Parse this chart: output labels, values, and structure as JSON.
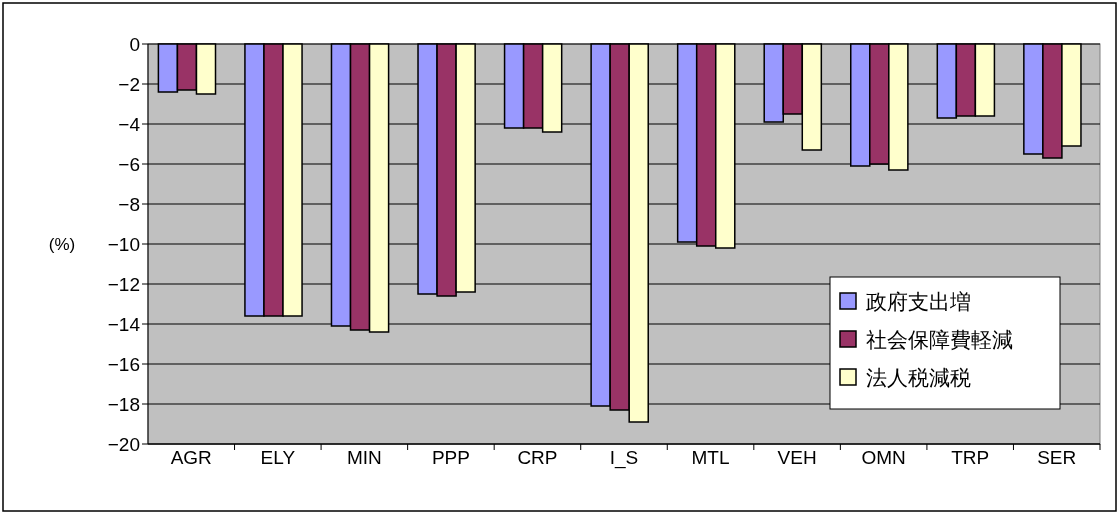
{
  "chart_data": {
    "type": "bar",
    "ylabel": "(%)",
    "categories": [
      "AGR",
      "ELY",
      "MIN",
      "PPP",
      "CRP",
      "I_S",
      "MTL",
      "VEH",
      "OMN",
      "TRP",
      "SER"
    ],
    "series": [
      {
        "name": "政府支出増",
        "color": "#9999ff",
        "values": [
          -2.4,
          -13.6,
          -14.1,
          -12.5,
          -4.2,
          -18.1,
          -9.9,
          -3.9,
          -6.1,
          -3.7,
          -5.5
        ]
      },
      {
        "name": "社会保障費軽減",
        "color": "#993366",
        "values": [
          -2.3,
          -13.6,
          -14.3,
          -12.6,
          -4.2,
          -18.3,
          -10.1,
          -3.5,
          -6.0,
          -3.6,
          -5.7
        ]
      },
      {
        "name": "法人税減税",
        "color": "#ffffcc",
        "values": [
          -2.5,
          -13.6,
          -14.4,
          -12.4,
          -4.4,
          -18.9,
          -10.2,
          -5.3,
          -6.3,
          -3.6,
          -5.1
        ]
      }
    ],
    "ylim": [
      -20,
      0
    ],
    "yticks": [
      -20,
      -18,
      -16,
      -14,
      -12,
      -10,
      -8,
      -6,
      -4,
      -2,
      0
    ],
    "grid": "y",
    "legend": "bottom right"
  }
}
